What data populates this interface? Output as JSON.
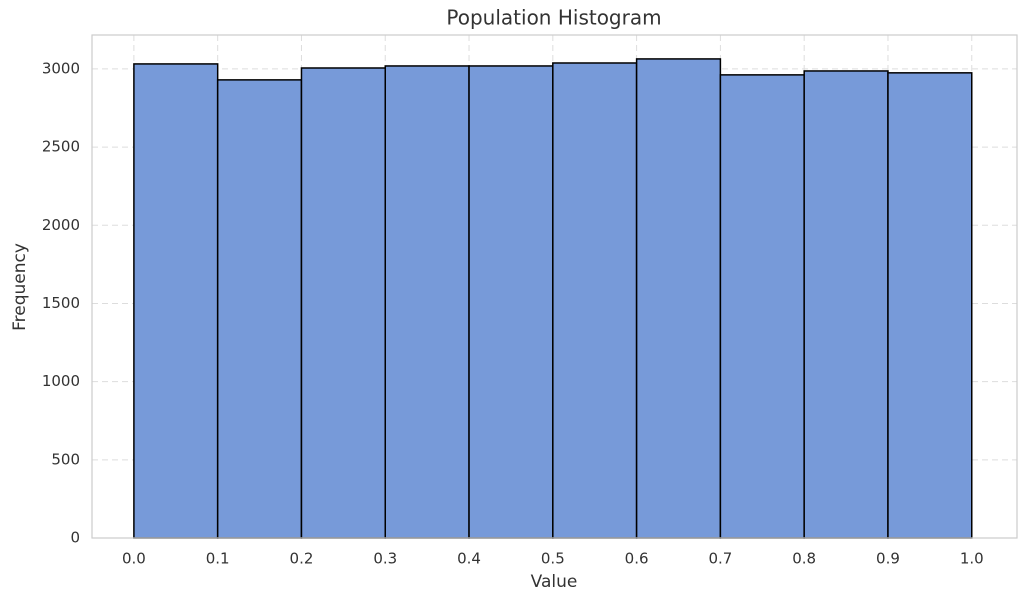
{
  "chart_data": {
    "type": "histogram",
    "title": "Population Histogram",
    "x_label": "Value",
    "y_label": "Frequency",
    "bins": [
      0.0,
      0.1,
      0.2,
      0.3,
      0.4,
      0.5,
      0.6,
      0.7,
      0.8,
      0.9,
      1.0
    ],
    "counts": [
      3032,
      2930,
      3006,
      3019,
      3019,
      3038,
      3064,
      2962,
      2987,
      2975
    ],
    "color": "#779ad9",
    "edgecolor": "#000000",
    "xlim": [
      -0.05,
      1.054
    ],
    "ylim": [
      0,
      3217
    ],
    "xticks": [
      {
        "value": 0,
        "label": "0.0"
      },
      0.1,
      0.2,
      0.3,
      0.4,
      0.5,
      0.6,
      0.7,
      0.8,
      0.9,
      {
        "value": 1,
        "label": "1.0"
      }
    ],
    "yticks": [
      0,
      500,
      1000,
      1500,
      2000,
      2500,
      3000
    ],
    "grid": true
  }
}
